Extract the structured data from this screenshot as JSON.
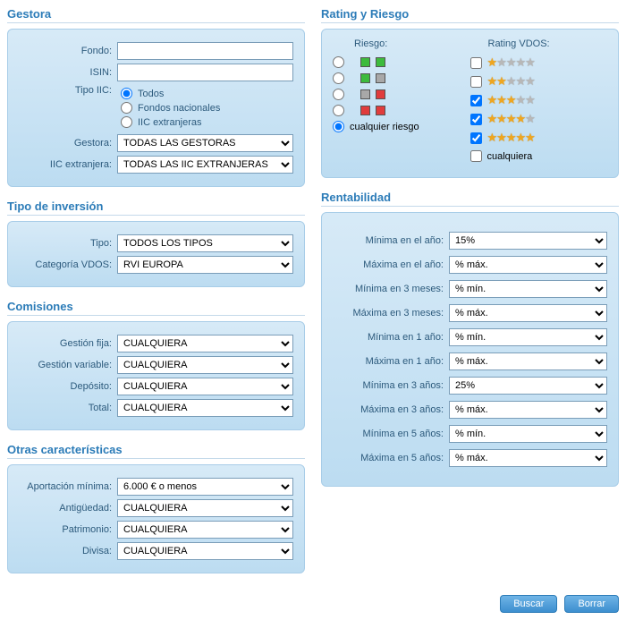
{
  "gestora": {
    "title": "Gestora",
    "fondo_label": "Fondo:",
    "isin_label": "ISIN:",
    "tipo_iic_label": "Tipo IIC:",
    "tipo_iic_options": [
      "Todos",
      "Fondos nacionales",
      "IIC extranjeras"
    ],
    "tipo_iic_selected": 0,
    "gestora_label": "Gestora:",
    "gestora_value": "TODAS LAS GESTORAS",
    "iic_ext_label": "IIC extranjera:",
    "iic_ext_value": "TODAS LAS IIC EXTRANJERAS"
  },
  "tipo_inversion": {
    "title": "Tipo de inversión",
    "tipo_label": "Tipo:",
    "tipo_value": "TODOS LOS TIPOS",
    "cat_label": "Categoría VDOS:",
    "cat_value": "RVI EUROPA"
  },
  "comisiones": {
    "title": "Comisiones",
    "gf_label": "Gestión fija:",
    "gv_label": "Gestión variable:",
    "dep_label": "Depósito:",
    "tot_label": "Total:",
    "any_value": "CUALQUIERA"
  },
  "otras": {
    "title": "Otras características",
    "ap_label": "Aportación mínima:",
    "ap_value": "6.000 € o menos",
    "ant_label": "Antigüedad:",
    "pat_label": "Patrimonio:",
    "div_label": "Divisa:",
    "any_value": "CUALQUIERA"
  },
  "rating": {
    "title": "Rating y Riesgo",
    "riesgo_head": "Riesgo:",
    "rating_head": "Rating VDOS:",
    "risk_rows": [
      {
        "colors": [
          "green",
          "green"
        ],
        "selected": false
      },
      {
        "colors": [
          "green",
          "gray"
        ],
        "selected": false
      },
      {
        "colors": [
          "gray",
          "red"
        ],
        "selected": false
      },
      {
        "colors": [
          "red",
          "red"
        ],
        "selected": false
      }
    ],
    "risk_any_label": "cualquier riesgo",
    "risk_any_selected": true,
    "rating_rows": [
      {
        "stars": 1,
        "checked": false
      },
      {
        "stars": 2,
        "checked": false
      },
      {
        "stars": 3,
        "checked": true
      },
      {
        "stars": 4,
        "checked": true
      },
      {
        "stars": 5,
        "checked": true
      }
    ],
    "rating_any_label": "cualquiera",
    "rating_any_checked": false
  },
  "rentabilidad": {
    "title": "Rentabilidad",
    "rows": [
      {
        "label": "Mínima en el año:",
        "value": "15%"
      },
      {
        "label": "Máxima en el año:",
        "value": "% máx."
      },
      {
        "label": "Mínima en 3 meses:",
        "value": "% mín."
      },
      {
        "label": "Máxima en 3 meses:",
        "value": "% máx."
      },
      {
        "label": "Mínima en 1 año:",
        "value": "% mín."
      },
      {
        "label": "Máxima en 1 año:",
        "value": "% máx."
      },
      {
        "label": "Mínima en 3 años:",
        "value": "25%"
      },
      {
        "label": "Máxima en 3 años:",
        "value": "% máx."
      },
      {
        "label": "Mínima en 5 años:",
        "value": "% mín."
      },
      {
        "label": "Máxima en 5 años:",
        "value": "% máx."
      }
    ]
  },
  "buttons": {
    "buscar": "Buscar",
    "borrar": "Borrar"
  },
  "colors": {
    "accent": "#2c7cb8",
    "panel_top": "#d7eaf7",
    "panel_bottom": "#bcdcf1",
    "star_on": "#f0a61e",
    "star_off": "#b8b8b8",
    "risk_green": "#3dbb3d",
    "risk_red": "#e03c3c",
    "risk_gray": "#a8a8a8"
  }
}
